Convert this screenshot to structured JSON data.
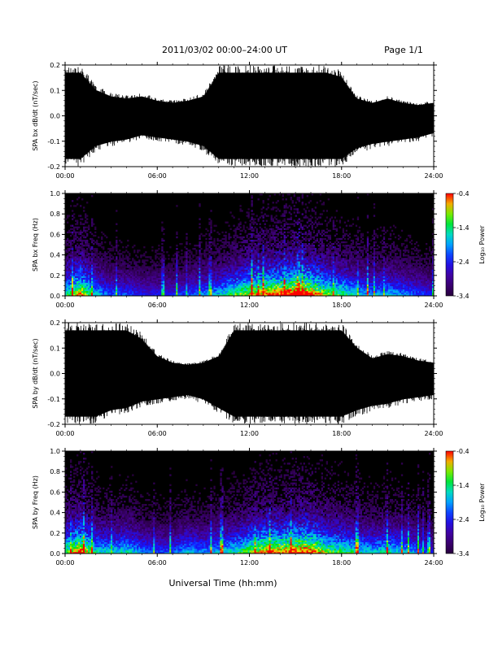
{
  "header": {
    "title": "2011/03/02  00:00–24:00 UT",
    "page": "Page 1/1"
  },
  "footer": {
    "xlabel": "Universal Time (hh:mm)"
  },
  "colors": {
    "trace": "#000000",
    "background": "#ffffff",
    "spectrogram_floor": "#000000"
  },
  "chart_data": [
    {
      "type": "line",
      "ylabel": "SPA bx dB/dt (nT/sec)",
      "x_ticks": [
        "00:00",
        "06:00",
        "12:00",
        "18:00",
        "24:00"
      ],
      "xlim": [
        0,
        24
      ],
      "ylim": [
        -0.2,
        0.2
      ],
      "y_ticks": [
        "-0.2",
        "-0.1",
        "0.0",
        "0.1",
        "0.2"
      ],
      "envelope_hours": [
        0,
        1,
        2,
        3,
        4,
        5,
        6,
        7,
        8,
        9,
        10,
        11,
        12,
        13,
        14,
        15,
        16,
        17,
        18,
        19,
        20,
        21,
        22,
        23,
        24
      ],
      "envelope_upper": [
        0.2,
        0.2,
        0.12,
        0.09,
        0.08,
        0.09,
        0.07,
        0.06,
        0.07,
        0.09,
        0.2,
        0.2,
        0.2,
        0.2,
        0.2,
        0.2,
        0.2,
        0.2,
        0.18,
        0.08,
        0.06,
        0.08,
        0.06,
        0.05,
        0.06
      ],
      "envelope_lower": [
        -0.2,
        -0.2,
        -0.14,
        -0.12,
        -0.11,
        -0.09,
        -0.1,
        -0.11,
        -0.12,
        -0.14,
        -0.2,
        -0.2,
        -0.2,
        -0.2,
        -0.2,
        -0.2,
        -0.2,
        -0.2,
        -0.2,
        -0.15,
        -0.13,
        -0.12,
        -0.11,
        -0.1,
        -0.08
      ]
    },
    {
      "type": "heatmap",
      "ylabel": "SPA bx Freq (Hz)",
      "x_ticks": [
        "00:00",
        "06:00",
        "12:00",
        "18:00",
        "24:00"
      ],
      "xlim": [
        0,
        24
      ],
      "ylim": [
        0.0,
        1.0
      ],
      "y_ticks": [
        "0.0",
        "0.2",
        "0.4",
        "0.6",
        "0.8",
        "1.0"
      ],
      "colorbar_label": "Log₁₀ Power",
      "colorbar_ticks": [
        "-0.4",
        "-1.4",
        "-2.4",
        "-3.4"
      ],
      "colorbar_range": [
        -3.4,
        -0.4
      ],
      "activity_hours": [
        0,
        1,
        2,
        3,
        4,
        5,
        6,
        7,
        8,
        9,
        10,
        11,
        12,
        13,
        14,
        15,
        16,
        17,
        18,
        19,
        20,
        21,
        22,
        23,
        24
      ],
      "activity_level": [
        0.5,
        0.7,
        0.45,
        0.35,
        0.35,
        0.3,
        0.3,
        0.3,
        0.35,
        0.4,
        0.45,
        0.55,
        0.65,
        0.7,
        0.75,
        0.8,
        0.75,
        0.6,
        0.55,
        0.45,
        0.4,
        0.45,
        0.4,
        0.35,
        0.3
      ]
    },
    {
      "type": "line",
      "ylabel": "SPA by dB/dt (nT/sec)",
      "x_ticks": [
        "00:00",
        "06:00",
        "12:00",
        "18:00",
        "24:00"
      ],
      "xlim": [
        0,
        24
      ],
      "ylim": [
        -0.2,
        0.2
      ],
      "y_ticks": [
        "-0.2",
        "-0.1",
        "0.0",
        "0.1",
        "0.2"
      ],
      "envelope_hours": [
        0,
        1,
        2,
        3,
        4,
        5,
        6,
        7,
        8,
        9,
        10,
        11,
        12,
        13,
        14,
        15,
        16,
        17,
        18,
        19,
        20,
        21,
        22,
        23,
        24
      ],
      "envelope_upper": [
        0.2,
        0.2,
        0.2,
        0.2,
        0.2,
        0.16,
        0.08,
        0.05,
        0.04,
        0.05,
        0.08,
        0.2,
        0.2,
        0.2,
        0.2,
        0.2,
        0.2,
        0.2,
        0.2,
        0.12,
        0.07,
        0.09,
        0.08,
        0.06,
        0.05
      ],
      "envelope_lower": [
        -0.2,
        -0.2,
        -0.2,
        -0.17,
        -0.16,
        -0.13,
        -0.12,
        -0.11,
        -0.1,
        -0.12,
        -0.16,
        -0.2,
        -0.2,
        -0.2,
        -0.2,
        -0.2,
        -0.2,
        -0.2,
        -0.2,
        -0.17,
        -0.15,
        -0.14,
        -0.12,
        -0.11,
        -0.1
      ]
    },
    {
      "type": "heatmap",
      "ylabel": "SPA by Freq (Hz)",
      "x_ticks": [
        "00:00",
        "06:00",
        "12:00",
        "18:00",
        "24:00"
      ],
      "xlim": [
        0,
        24
      ],
      "ylim": [
        0.0,
        1.0
      ],
      "y_ticks": [
        "0.0",
        "0.2",
        "0.4",
        "0.6",
        "0.8",
        "1.0"
      ],
      "colorbar_label": "Log₁₀ Power",
      "colorbar_ticks": [
        "-0.4",
        "-1.4",
        "-2.4",
        "-3.4"
      ],
      "colorbar_range": [
        -3.4,
        -0.4
      ],
      "activity_hours": [
        0,
        1,
        2,
        3,
        4,
        5,
        6,
        7,
        8,
        9,
        10,
        11,
        12,
        13,
        14,
        15,
        16,
        17,
        18,
        19,
        20,
        21,
        22,
        23,
        24
      ],
      "activity_level": [
        0.55,
        0.75,
        0.5,
        0.45,
        0.5,
        0.4,
        0.35,
        0.35,
        0.45,
        0.4,
        0.45,
        0.5,
        0.6,
        0.7,
        0.7,
        0.75,
        0.75,
        0.6,
        0.55,
        0.5,
        0.45,
        0.5,
        0.45,
        0.4,
        0.3
      ]
    }
  ]
}
